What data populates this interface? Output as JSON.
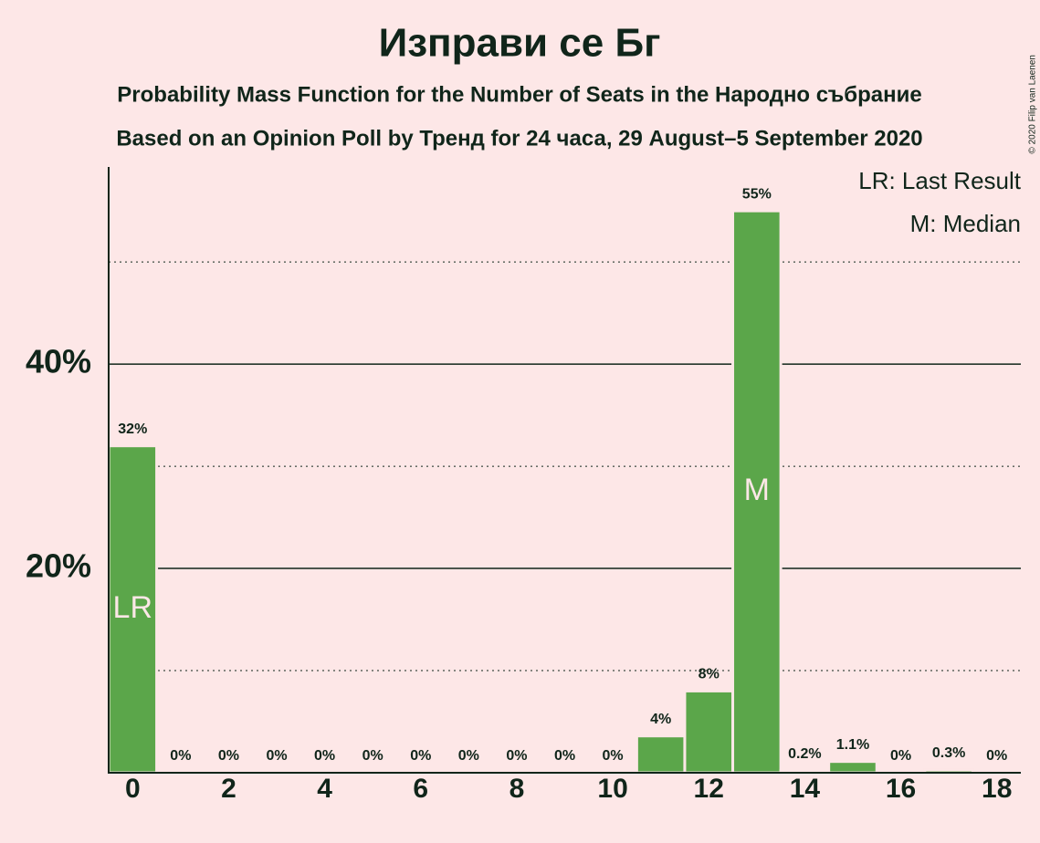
{
  "chart_data": {
    "type": "bar",
    "title": "Изправи се Бг",
    "subtitles": [
      "Probability Mass Function for the Number of Seats in the Народно събрание",
      "Based on an Opinion Poll by Тренд for 24 часа, 29 August–5 September 2020"
    ],
    "x": [
      0,
      1,
      2,
      3,
      4,
      5,
      6,
      7,
      8,
      9,
      10,
      11,
      12,
      13,
      14,
      15,
      16,
      17,
      18
    ],
    "values": [
      32,
      0,
      0,
      0,
      0,
      0,
      0,
      0,
      0,
      0,
      0,
      3.6,
      8,
      55,
      0.2,
      1.1,
      0,
      0.3,
      0
    ],
    "value_labels": [
      "32%",
      "0%",
      "0%",
      "0%",
      "0%",
      "0%",
      "0%",
      "0%",
      "0%",
      "0%",
      "0%",
      "4%",
      "8%",
      "55%",
      "0.2%",
      "1.1%",
      "0%",
      "0.3%",
      "0%"
    ],
    "color": "#5ba64a",
    "xlim": [
      -0.5,
      18.5
    ],
    "xticks": [
      0,
      2,
      4,
      6,
      8,
      10,
      12,
      14,
      16,
      18
    ],
    "ylim": [
      0,
      59.3
    ],
    "yticks": [
      {
        "value": 20,
        "label": "20%"
      },
      {
        "value": 40,
        "label": "40%"
      }
    ],
    "minor_grid": [
      10,
      30,
      50
    ],
    "annotations": [
      {
        "text": "LR",
        "x": 0
      },
      {
        "text": "M",
        "x": 13
      }
    ],
    "legend": [
      "LR: Last Result",
      "M: Median"
    ],
    "copyright": "© 2020 Filip van Laenen"
  }
}
